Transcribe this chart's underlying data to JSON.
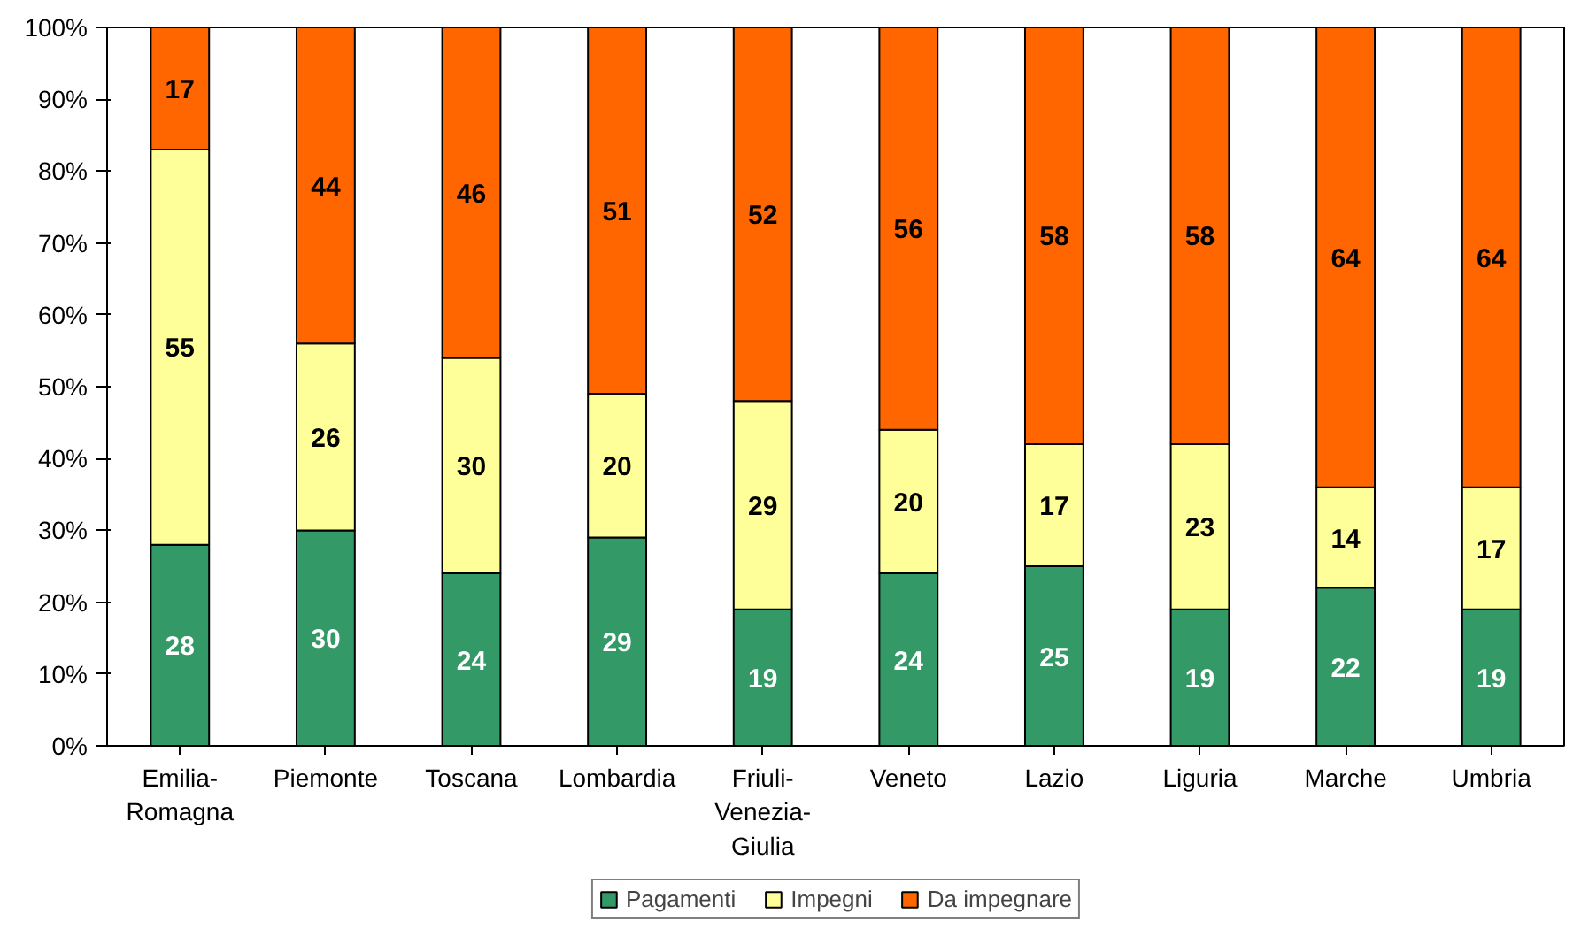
{
  "chart_data": {
    "type": "bar",
    "stacked": true,
    "data_labels": true,
    "grid": false,
    "legend": "bottom",
    "categories": [
      "Emilia-Romagna",
      "Piemonte",
      "Toscana",
      "Lombardia",
      "Friuli-Venezia-Giulia",
      "Veneto",
      "Lazio",
      "Liguria",
      "Marche",
      "Umbria"
    ],
    "ylim": [
      0,
      100
    ],
    "yticks": [
      {
        "value": 0,
        "label": "0%"
      },
      {
        "value": 10,
        "label": "10%"
      },
      {
        "value": 20,
        "label": "20%"
      },
      {
        "value": 30,
        "label": "30%"
      },
      {
        "value": 40,
        "label": "40%"
      },
      {
        "value": 50,
        "label": "50%"
      },
      {
        "value": 60,
        "label": "60%"
      },
      {
        "value": 70,
        "label": "70%"
      },
      {
        "value": 80,
        "label": "80%"
      },
      {
        "value": 90,
        "label": "90%"
      },
      {
        "value": 100,
        "label": "100%"
      }
    ],
    "series": [
      {
        "name": "Pagamenti",
        "color": "#339966",
        "values": [
          28,
          30,
          24,
          29,
          19,
          24,
          25,
          19,
          22,
          19
        ]
      },
      {
        "name": "Impegni",
        "color": "#ffff99",
        "values": [
          55,
          26,
          30,
          20,
          29,
          20,
          17,
          23,
          14,
          17
        ]
      },
      {
        "name": "Da impegnare",
        "color": "#ff6600",
        "values": [
          17,
          44,
          46,
          51,
          52,
          56,
          58,
          58,
          64,
          64
        ]
      }
    ]
  }
}
